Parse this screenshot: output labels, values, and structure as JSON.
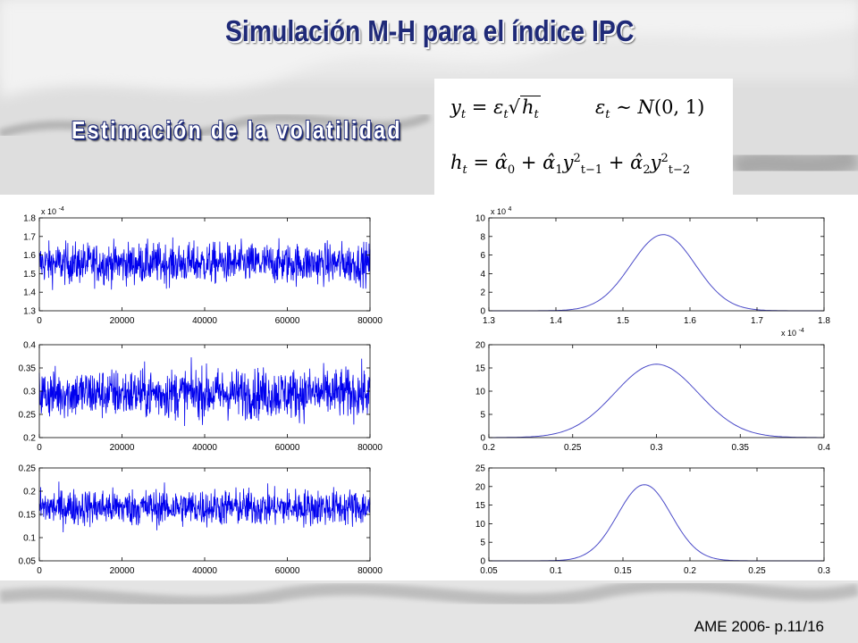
{
  "slide": {
    "title": "Simulación M-H para el índice IPC",
    "subtitle": "Estimación de la volatilidad",
    "footer": "AME 2006- p.11/16"
  },
  "colors": {
    "trace": "#0000ee",
    "density": "#4b4bc8",
    "title": "#1f2a78",
    "axis": "#000000"
  },
  "chart_data": [
    {
      "type": "line",
      "x_range": [
        0,
        80000
      ],
      "xticks": [
        "0",
        "20000",
        "40000",
        "60000",
        "80000"
      ],
      "ylim": [
        1.3,
        1.8
      ],
      "yticks": [
        "1.3",
        "1.4",
        "1.5",
        "1.6",
        "1.7",
        "1.8"
      ],
      "y_exponent": "x 10",
      "y_exponent_power": "-4",
      "series": [
        {
          "mean": 1.555,
          "spread": 0.055
        }
      ]
    },
    {
      "type": "line",
      "x_range": [
        0,
        80000
      ],
      "xticks": [
        "0",
        "20000",
        "40000",
        "60000",
        "80000"
      ],
      "ylim": [
        0.2,
        0.4
      ],
      "yticks": [
        "0.2",
        "0.25",
        "0.3",
        "0.35",
        "0.4"
      ],
      "series": [
        {
          "mean": 0.295,
          "spread": 0.027
        }
      ]
    },
    {
      "type": "line",
      "x_range": [
        0,
        80000
      ],
      "xticks": [
        "0",
        "20000",
        "40000",
        "60000",
        "80000"
      ],
      "ylim": [
        0.05,
        0.25
      ],
      "yticks": [
        "0.05",
        "0.1",
        "0.15",
        "0.2",
        "0.25"
      ],
      "series": [
        {
          "mean": 0.165,
          "spread": 0.02
        }
      ]
    },
    {
      "type": "line",
      "xlim": [
        1.3,
        1.8
      ],
      "xticks": [
        "1.3",
        "1.4",
        "1.5",
        "1.6",
        "1.7",
        "1.8"
      ],
      "x_exponent": "x 10",
      "x_exponent_power": "-4",
      "ylim": [
        0,
        10
      ],
      "yticks": [
        "0",
        "2",
        "4",
        "6",
        "8",
        "10"
      ],
      "y_exponent": "x 10",
      "y_exponent_power": "4",
      "series": [
        {
          "mu": 1.56,
          "sigma": 0.048,
          "peak": 8.2
        }
      ]
    },
    {
      "type": "line",
      "xlim": [
        0.2,
        0.4
      ],
      "xticks": [
        "0.2",
        "0.25",
        "0.3",
        "0.35",
        "0.4"
      ],
      "ylim": [
        0,
        20
      ],
      "yticks": [
        "0",
        "5",
        "10",
        "15",
        "20"
      ],
      "series": [
        {
          "mu": 0.3,
          "sigma": 0.025,
          "peak": 15.8
        }
      ]
    },
    {
      "type": "line",
      "xlim": [
        0.05,
        0.3
      ],
      "xticks": [
        "0.05",
        "0.1",
        "0.15",
        "0.2",
        "0.25",
        "0.3"
      ],
      "ylim": [
        0,
        25
      ],
      "yticks": [
        "0",
        "5",
        "10",
        "15",
        "20",
        "25"
      ],
      "series": [
        {
          "mu": 0.166,
          "sigma": 0.02,
          "peak": 20.5
        }
      ]
    }
  ]
}
